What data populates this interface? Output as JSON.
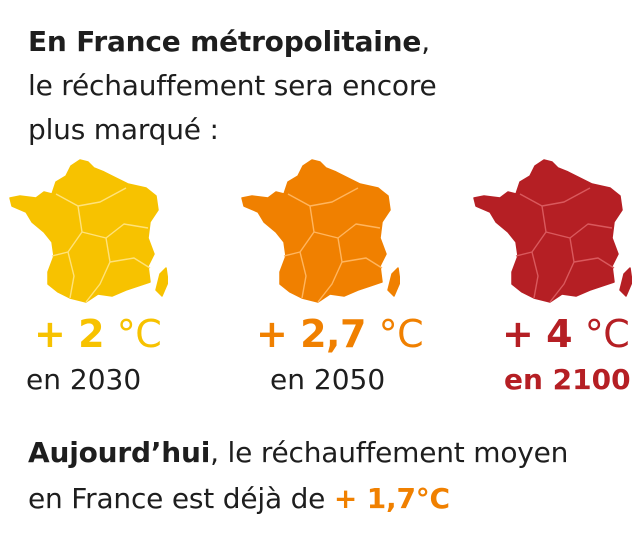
{
  "colors": {
    "text": "#1e1e1e",
    "yellow": "#f7c200",
    "orange": "#f08000",
    "red": "#b51f24",
    "yellow_border": "#ffe27a",
    "orange_border": "#ffb55e",
    "red_border": "#d9595d"
  },
  "intro": {
    "line1_bold": "En France métropolitaine",
    "line1_rest": ",",
    "line2": "le réchauffement sera encore",
    "line3": "plus marqué :"
  },
  "scenarios": [
    {
      "temp_value": "+ 2",
      "temp_unit": "°C",
      "year": "en 2030",
      "map_icon": "france-map-icon",
      "color": "#f7c200"
    },
    {
      "temp_value": "+ 2,7",
      "temp_unit": "°C",
      "year": "en 2050",
      "map_icon": "france-map-icon",
      "color": "#f08000"
    },
    {
      "temp_value": "+ 4",
      "temp_unit": "°C",
      "year": "en 2100",
      "map_icon": "france-map-icon",
      "color": "#b51f24"
    }
  ],
  "today": {
    "bold": "Aujourd’hui",
    "line1_rest": ", le réchauffement moyen",
    "line2_text": "en France est déjà de ",
    "value": "+ 1,7°C"
  }
}
